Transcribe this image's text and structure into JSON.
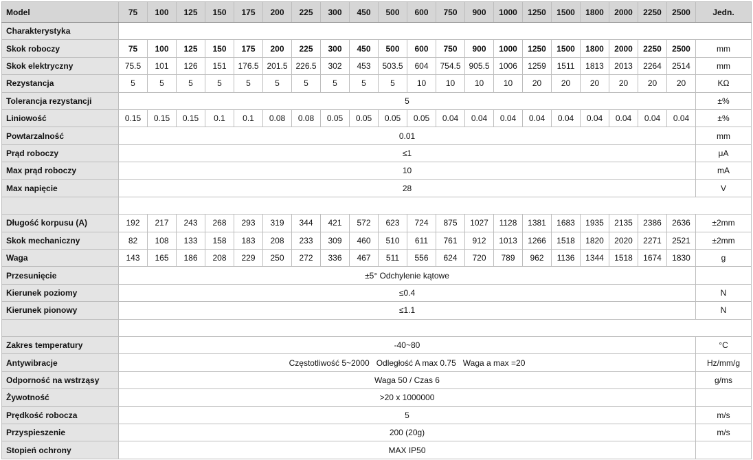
{
  "table": {
    "header_label": "Model",
    "models": [
      "75",
      "100",
      "125",
      "150",
      "175",
      "200",
      "225",
      "300",
      "450",
      "500",
      "600",
      "750",
      "900",
      "1000",
      "1250",
      "1500",
      "1800",
      "2000",
      "2250",
      "2500"
    ],
    "unit_header": "Jedn.",
    "rows": [
      {
        "label": "Charakterystyka",
        "type": "section"
      },
      {
        "label": "Skok roboczy",
        "bold": true,
        "values": [
          "75",
          "100",
          "125",
          "150",
          "175",
          "200",
          "225",
          "300",
          "450",
          "500",
          "600",
          "750",
          "900",
          "1000",
          "1250",
          "1500",
          "1800",
          "2000",
          "2250",
          "2500"
        ],
        "unit": "mm"
      },
      {
        "label": "Skok elektryczny",
        "values": [
          "75.5",
          "101",
          "126",
          "151",
          "176.5",
          "201.5",
          "226.5",
          "302",
          "453",
          "503.5",
          "604",
          "754.5",
          "905.5",
          "1006",
          "1259",
          "1511",
          "1813",
          "2013",
          "2264",
          "2514"
        ],
        "unit": "mm"
      },
      {
        "label": "Rezystancja",
        "values": [
          "5",
          "5",
          "5",
          "5",
          "5",
          "5",
          "5",
          "5",
          "5",
          "5",
          "10",
          "10",
          "10",
          "10",
          "20",
          "20",
          "20",
          "20",
          "20",
          "20"
        ],
        "unit": "KΩ"
      },
      {
        "label": "Tolerancja rezystancji",
        "span": "5",
        "unit": "±%"
      },
      {
        "label": "Liniowość",
        "values": [
          "0.15",
          "0.15",
          "0.15",
          "0.1",
          "0.1",
          "0.08",
          "0.08",
          "0.05",
          "0.05",
          "0.05",
          "0.05",
          "0.04",
          "0.04",
          "0.04",
          "0.04",
          "0.04",
          "0.04",
          "0.04",
          "0.04",
          "0.04"
        ],
        "unit": "±%"
      },
      {
        "label": "Powtarzalność",
        "span": "0.01",
        "unit": "mm"
      },
      {
        "label": "Prąd roboczy",
        "span": "≤1",
        "unit": "μA"
      },
      {
        "label": "Max prąd roboczy",
        "span": "10",
        "unit": "mA"
      },
      {
        "label": "Max napięcie",
        "span": "28",
        "unit": "V"
      },
      {
        "label": "",
        "type": "section"
      },
      {
        "label": "Długość korpusu (A)",
        "values": [
          "192",
          "217",
          "243",
          "268",
          "293",
          "319",
          "344",
          "421",
          "572",
          "623",
          "724",
          "875",
          "1027",
          "1128",
          "1381",
          "1683",
          "1935",
          "2135",
          "2386",
          "2636"
        ],
        "unit": "±2mm"
      },
      {
        "label": "Skok mechaniczny",
        "values": [
          "82",
          "108",
          "133",
          "158",
          "183",
          "208",
          "233",
          "309",
          "460",
          "510",
          "611",
          "761",
          "912",
          "1013",
          "1266",
          "1518",
          "1820",
          "2020",
          "2271",
          "2521"
        ],
        "unit": "±2mm"
      },
      {
        "label": "Waga",
        "values": [
          "143",
          "165",
          "186",
          "208",
          "229",
          "250",
          "272",
          "336",
          "467",
          "511",
          "556",
          "624",
          "720",
          "789",
          "962",
          "1136",
          "1344",
          "1518",
          "1674",
          "1830"
        ],
        "unit": "g"
      },
      {
        "label": "Przesunięcie",
        "span": "±5° Odchylenie kątowe",
        "unit": ""
      },
      {
        "label": "Kierunek poziomy",
        "span": "≤0.4",
        "unit": "N"
      },
      {
        "label": "Kierunek pionowy",
        "span": "≤1.1",
        "unit": "N"
      },
      {
        "label": "",
        "type": "section"
      },
      {
        "label": "Zakres temperatury",
        "span": "-40~80",
        "unit": "°C"
      },
      {
        "label": "Antywibracje",
        "span": "Częstotliwość 5~2000   Odległość A max 0.75   Waga a max =20",
        "unit": "Hz/mm/g"
      },
      {
        "label": "Odporność na wstrząsy",
        "span": "Waga 50 / Czas 6",
        "unit": "g/ms"
      },
      {
        "label": "Żywotność",
        "span": ">20 x 1000000",
        "unit": ""
      },
      {
        "label": "Prędkość robocza",
        "span": "5",
        "unit": "m/s"
      },
      {
        "label": "Przyspieszenie",
        "span": "200 (20g)",
        "unit": "m/s"
      },
      {
        "label": "Stopień ochrony",
        "span": "MAX IP50",
        "unit": ""
      }
    ]
  }
}
